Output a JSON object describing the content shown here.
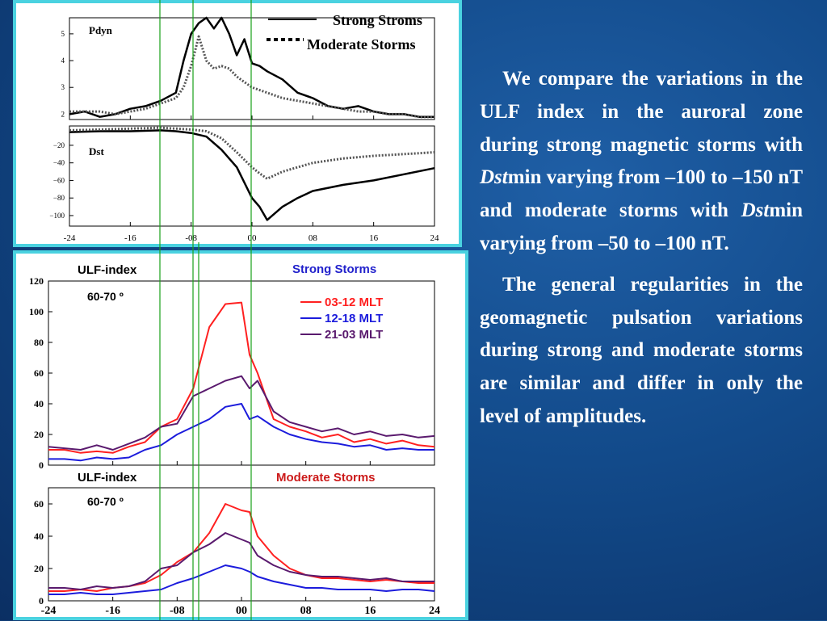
{
  "colors": {
    "background": "#124a8a",
    "panel_border": "#4ad2e0",
    "red": "#ff2020",
    "blue": "#1c1cdc",
    "purple": "#5a1a6e",
    "guide_line": "#19a019"
  },
  "legend_top": {
    "strong": "Strong Stroms",
    "moderate": "Moderate Storms"
  },
  "text": {
    "p1_a": "We compare the variations in the ULF index in the auroral zone during strong magnetic storms with ",
    "p1_dst1": "Dst",
    "p1_b": "min varying from –100 to –150 nT and moderate storms with ",
    "p1_dst2": "Dst",
    "p1_c": "min varying from –50 to –100 nT.",
    "p2": "The general regularities in the geomagnetic pulsation variations during strong and moderate storms are similar and differ in only the level of amplitudes."
  },
  "chart_data": [
    {
      "type": "line",
      "panel_label": "Pdyn",
      "xlim": [
        -24,
        24
      ],
      "ylim": [
        1.8,
        5.6
      ],
      "yticks": [
        "2",
        "3",
        "4",
        "5"
      ],
      "x": [
        -24,
        -22,
        -20,
        -18,
        -16,
        -14,
        -12,
        -10,
        -9,
        -8,
        -7,
        -6,
        -5,
        -4,
        -3,
        -2,
        -1,
        0,
        1,
        2,
        4,
        6,
        8,
        10,
        12,
        14,
        16,
        18,
        20,
        22,
        24
      ],
      "series": [
        {
          "name": "Strong Stroms",
          "style": "solid",
          "values": [
            2.0,
            2.1,
            1.9,
            2.0,
            2.2,
            2.3,
            2.5,
            2.8,
            4.0,
            5.0,
            5.4,
            5.6,
            5.2,
            5.6,
            5.0,
            4.2,
            4.8,
            3.9,
            3.8,
            3.6,
            3.3,
            2.8,
            2.6,
            2.3,
            2.2,
            2.3,
            2.1,
            2.0,
            2.0,
            1.9,
            1.9
          ]
        },
        {
          "name": "Moderate Storms",
          "style": "dotted",
          "values": [
            2.1,
            2.1,
            2.1,
            2.0,
            2.1,
            2.2,
            2.4,
            2.6,
            3.0,
            3.8,
            4.9,
            4.0,
            3.7,
            3.8,
            3.7,
            3.4,
            3.2,
            3.0,
            2.9,
            2.8,
            2.6,
            2.5,
            2.4,
            2.3,
            2.2,
            2.1,
            2.1,
            2.0,
            2.0,
            1.9,
            1.9
          ]
        }
      ]
    },
    {
      "type": "line",
      "panel_label": "Dst",
      "xlim": [
        -24,
        24
      ],
      "ylim": [
        -112,
        2
      ],
      "yticks": [
        "−20",
        "−40",
        "−60",
        "−80",
        "−100"
      ],
      "xticks": [
        "-24",
        "-16",
        "-08",
        "00",
        "08",
        "16",
        "24"
      ],
      "x": [
        -24,
        -20,
        -16,
        -12,
        -10,
        -8,
        -6,
        -4,
        -2,
        0,
        1,
        2,
        4,
        6,
        8,
        12,
        16,
        20,
        24
      ],
      "series": [
        {
          "name": "Strong Stroms",
          "style": "solid",
          "values": [
            -5,
            -4,
            -4,
            -3,
            -4,
            -6,
            -10,
            -25,
            -45,
            -80,
            -90,
            -105,
            -90,
            -80,
            -72,
            -65,
            -60,
            -53,
            -46
          ]
        },
        {
          "name": "Moderate Storms",
          "style": "dotted",
          "values": [
            -3,
            -2,
            -1,
            0,
            -1,
            -2,
            -4,
            -12,
            -28,
            -45,
            -52,
            -58,
            -50,
            -45,
            -40,
            -35,
            -32,
            -30,
            -28
          ]
        }
      ]
    },
    {
      "type": "line",
      "title": "ULF-index",
      "subtitle": "Strong Storms",
      "panel_label": "60-70 º",
      "xlim": [
        -24,
        24
      ],
      "ylim": [
        0,
        120
      ],
      "yticks": [
        "0",
        "20",
        "40",
        "60",
        "80",
        "100",
        "120"
      ],
      "x": [
        -24,
        -22,
        -20,
        -18,
        -16,
        -14,
        -12,
        -10,
        -8,
        -6,
        -4,
        -2,
        0,
        1,
        2,
        4,
        6,
        8,
        10,
        12,
        14,
        16,
        18,
        20,
        22,
        24
      ],
      "series": [
        {
          "name": "03-12 MLT",
          "color": "red",
          "values": [
            10,
            10,
            8,
            9,
            8,
            12,
            15,
            25,
            30,
            50,
            90,
            105,
            106,
            72,
            60,
            30,
            25,
            22,
            18,
            20,
            15,
            17,
            14,
            16,
            13,
            12
          ]
        },
        {
          "name": "12-18 MLT",
          "color": "blue",
          "values": [
            4,
            4,
            3,
            5,
            4,
            5,
            10,
            13,
            20,
            25,
            30,
            38,
            40,
            30,
            32,
            25,
            20,
            17,
            15,
            14,
            12,
            13,
            10,
            11,
            10,
            10
          ]
        },
        {
          "name": "21-03 MLT",
          "color": "purple",
          "values": [
            12,
            11,
            10,
            13,
            10,
            14,
            18,
            25,
            27,
            45,
            50,
            55,
            58,
            50,
            55,
            35,
            28,
            25,
            22,
            24,
            20,
            22,
            19,
            20,
            18,
            19
          ]
        }
      ]
    },
    {
      "type": "line",
      "title": "ULF-index",
      "subtitle": "Moderate Storms",
      "panel_label": "60-70 º",
      "xlim": [
        -24,
        24
      ],
      "ylim": [
        0,
        70
      ],
      "yticks": [
        "0",
        "20",
        "40",
        "60"
      ],
      "xticks": [
        "-24",
        "-16",
        "-08",
        "00",
        "08",
        "16",
        "24"
      ],
      "x": [
        -24,
        -22,
        -20,
        -18,
        -16,
        -14,
        -12,
        -10,
        -8,
        -6,
        -4,
        -2,
        0,
        1,
        2,
        4,
        6,
        8,
        10,
        12,
        14,
        16,
        18,
        20,
        22,
        24
      ],
      "series": [
        {
          "name": "03-12 MLT",
          "color": "red",
          "values": [
            6,
            6,
            7,
            6,
            8,
            9,
            11,
            16,
            24,
            30,
            42,
            60,
            56,
            55,
            40,
            28,
            20,
            16,
            14,
            14,
            13,
            12,
            13,
            12,
            11,
            11
          ]
        },
        {
          "name": "12-18 MLT",
          "color": "blue",
          "values": [
            4,
            4,
            5,
            4,
            4,
            5,
            6,
            7,
            11,
            14,
            18,
            22,
            20,
            18,
            15,
            12,
            10,
            8,
            8,
            7,
            7,
            7,
            6,
            7,
            7,
            6
          ]
        },
        {
          "name": "21-03 MLT",
          "color": "purple",
          "values": [
            8,
            8,
            7,
            9,
            8,
            9,
            12,
            20,
            22,
            30,
            35,
            42,
            38,
            36,
            28,
            22,
            18,
            16,
            15,
            15,
            14,
            13,
            14,
            12,
            12,
            12
          ]
        }
      ]
    }
  ]
}
